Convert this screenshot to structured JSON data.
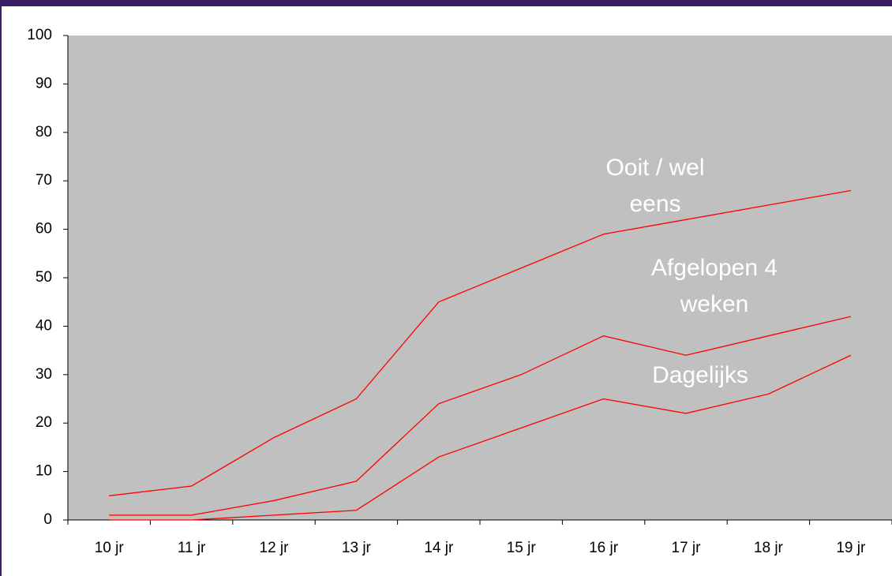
{
  "chart_data": {
    "type": "line",
    "categories": [
      "10 jr",
      "11 jr",
      "12 jr",
      "13 jr",
      "14 jr",
      "15 jr",
      "16 jr",
      "17 jr",
      "18 jr",
      "19 jr"
    ],
    "series": [
      {
        "color": "#ff0000",
        "values": [
          5,
          7,
          17,
          25,
          45,
          52,
          59,
          62,
          65,
          68
        ]
      },
      {
        "color": "#ff0000",
        "values": [
          1,
          1,
          4,
          8,
          24,
          30,
          38,
          34,
          38,
          42
        ]
      },
      {
        "color": "#ff0000",
        "values": [
          0,
          0,
          1,
          2,
          13,
          19,
          25,
          22,
          26,
          34
        ]
      }
    ],
    "annotations": [
      {
        "lines": [
          "Ooit / wel",
          "eens"
        ]
      },
      {
        "lines": [
          "Afgelopen 4",
          "weken"
        ]
      },
      {
        "lines": [
          "Dagelijks"
        ]
      }
    ],
    "ylim": [
      0,
      100
    ],
    "yticks": [
      0,
      10,
      20,
      30,
      40,
      50,
      60,
      70,
      80,
      90,
      100
    ],
    "plot_background": "#c0c0c0"
  }
}
